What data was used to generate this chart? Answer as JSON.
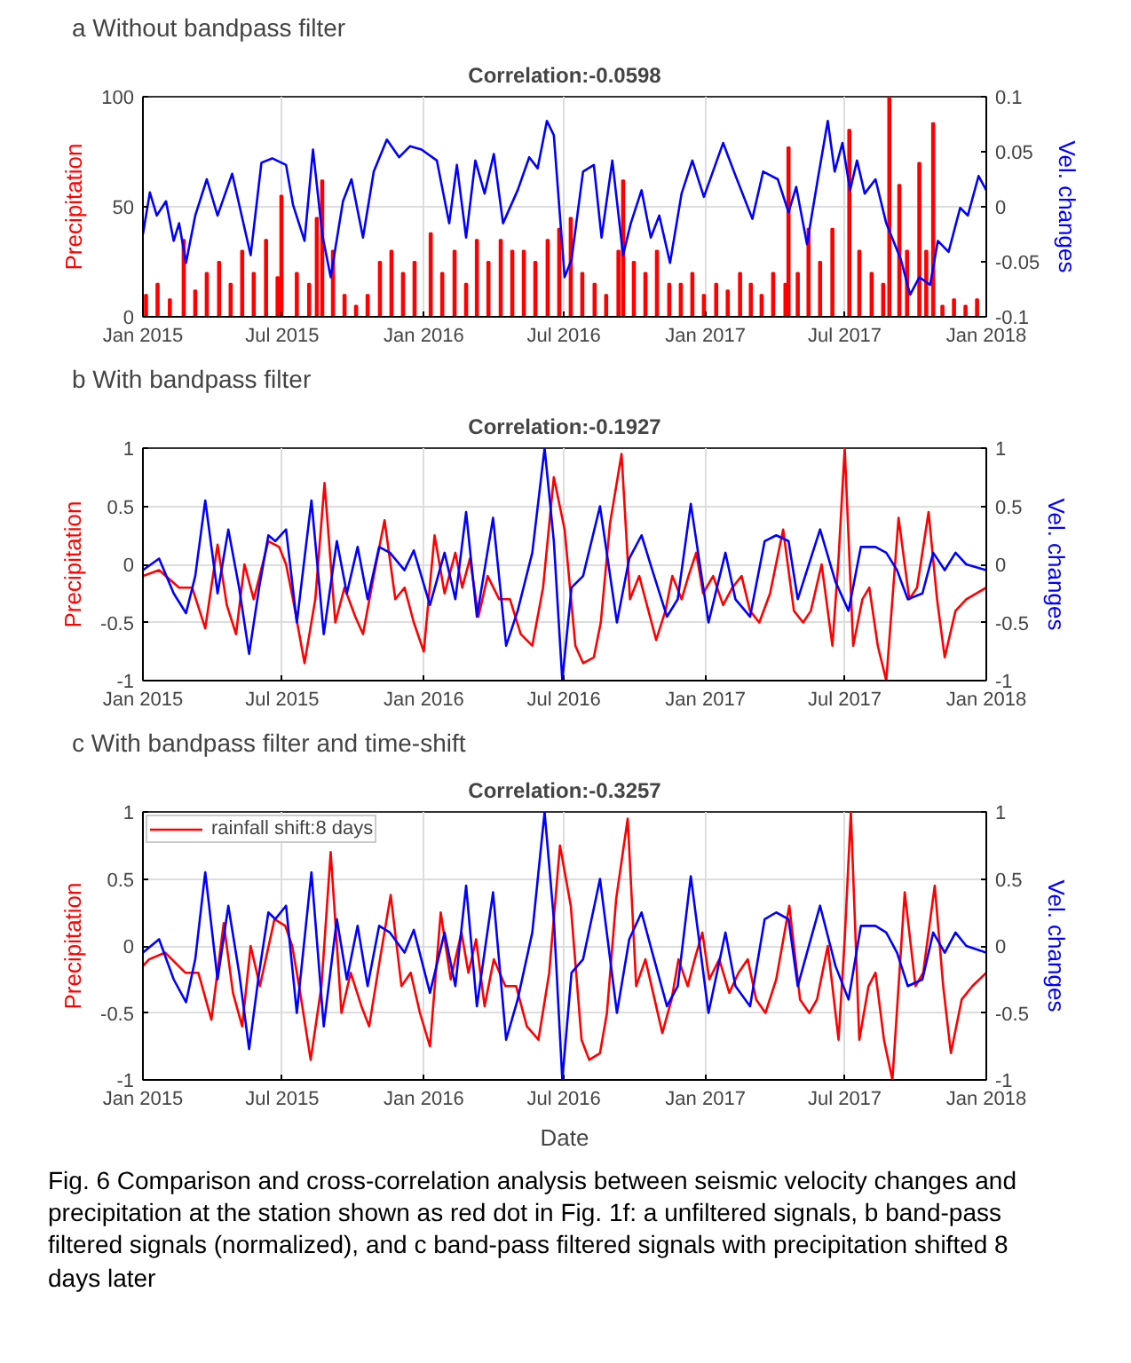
{
  "chart_data": [
    {
      "type": "line",
      "title": "a  Without bandpass filter",
      "subtitle": "Correlation:-0.0598",
      "ylabel": "Precipitation",
      "y2label": "Vel. changes",
      "xlim": [
        "2015-01-01",
        "2018-01-01"
      ],
      "xticks": [
        {
          "value": "2015-01-01",
          "label": "Jan 2015"
        },
        {
          "value": "2015-07-01",
          "label": "Jul 2015"
        },
        {
          "value": "2016-01-01",
          "label": "Jan 2016"
        },
        {
          "value": "2016-07-01",
          "label": "Jul 2016"
        },
        {
          "value": "2017-01-01",
          "label": "Jan 2017"
        },
        {
          "value": "2017-07-01",
          "label": "Jul 2017"
        },
        {
          "value": "2018-01-01",
          "label": "Jan 2018"
        }
      ],
      "ylim": [
        0,
        100
      ],
      "yticks": [
        0,
        50,
        100
      ],
      "y2lim": [
        -0.1,
        0.1
      ],
      "y2ticks": [
        -0.1,
        -0.05,
        0,
        0.05,
        0.1
      ],
      "grid": true,
      "series": [
        {
          "type": "bar",
          "color": "#ff0000",
          "x": [
            "2015-01-05",
            "2015-01-20",
            "2015-02-05",
            "2015-02-23",
            "2015-03-10",
            "2015-03-25",
            "2015-04-10",
            "2015-04-25",
            "2015-05-10",
            "2015-05-25",
            "2015-06-10",
            "2015-06-25",
            "2015-06-30",
            "2015-07-20",
            "2015-08-05",
            "2015-08-15",
            "2015-08-22",
            "2015-09-05",
            "2015-09-20",
            "2015-10-05",
            "2015-10-20",
            "2015-11-05",
            "2015-11-20",
            "2015-12-05",
            "2015-12-20",
            "2016-01-10",
            "2016-01-25",
            "2016-02-10",
            "2016-02-25",
            "2016-03-10",
            "2016-03-25",
            "2016-04-10",
            "2016-04-25",
            "2016-05-10",
            "2016-05-25",
            "2016-06-10",
            "2016-06-25",
            "2016-07-10",
            "2016-07-25",
            "2016-08-10",
            "2016-08-25",
            "2016-09-10",
            "2016-09-16",
            "2016-09-30",
            "2016-10-15",
            "2016-10-30",
            "2016-11-15",
            "2016-11-30",
            "2016-12-15",
            "2016-12-30",
            "2017-01-15",
            "2017-01-30",
            "2017-02-15",
            "2017-03-01",
            "2017-03-15",
            "2017-03-30",
            "2017-04-15",
            "2017-04-19",
            "2017-05-01",
            "2017-05-15",
            "2017-05-30",
            "2017-06-15",
            "2017-07-07",
            "2017-07-20",
            "2017-08-05",
            "2017-08-20",
            "2017-08-28",
            "2017-09-10",
            "2017-09-20",
            "2017-10-06",
            "2017-10-15",
            "2017-10-24",
            "2017-11-05",
            "2017-11-20",
            "2017-12-05",
            "2017-12-20"
          ],
          "values": [
            10,
            15,
            8,
            35,
            12,
            20,
            25,
            15,
            30,
            20,
            35,
            18,
            55,
            20,
            15,
            45,
            62,
            30,
            10,
            5,
            10,
            25,
            30,
            20,
            25,
            38,
            20,
            30,
            15,
            35,
            25,
            35,
            30,
            30,
            25,
            35,
            40,
            45,
            20,
            15,
            10,
            30,
            62,
            25,
            20,
            30,
            15,
            15,
            20,
            10,
            15,
            12,
            20,
            15,
            10,
            20,
            15,
            77,
            20,
            40,
            25,
            40,
            85,
            30,
            20,
            15,
            100,
            60,
            30,
            70,
            30,
            88,
            5,
            8,
            5,
            8
          ]
        },
        {
          "type": "line",
          "axis": "y2",
          "color": "#0000ff",
          "x": [
            "2015-01-01",
            "2015-01-10",
            "2015-01-19",
            "2015-01-31",
            "2015-02-10",
            "2015-02-17",
            "2015-02-26",
            "2015-03-10",
            "2015-03-25",
            "2015-04-08",
            "2015-04-27",
            "2015-05-21",
            "2015-06-04",
            "2015-06-18",
            "2015-07-06",
            "2015-07-15",
            "2015-07-30",
            "2015-08-10",
            "2015-08-22",
            "2015-09-02",
            "2015-09-18",
            "2015-09-29",
            "2015-10-14",
            "2015-10-28",
            "2015-11-14",
            "2015-11-30",
            "2015-12-14",
            "2015-12-29",
            "2016-01-18",
            "2016-02-03",
            "2016-02-13",
            "2016-02-25",
            "2016-03-08",
            "2016-03-20",
            "2016-04-01",
            "2016-04-13",
            "2016-05-02",
            "2016-05-17",
            "2016-05-28",
            "2016-06-09",
            "2016-06-18",
            "2016-07-02",
            "2016-07-11",
            "2016-07-26",
            "2016-08-09",
            "2016-08-19",
            "2016-09-02",
            "2016-09-16",
            "2016-09-26",
            "2016-10-10",
            "2016-10-22",
            "2016-11-02",
            "2016-11-16",
            "2016-12-01",
            "2016-12-15",
            "2016-12-30",
            "2017-01-24",
            "2017-02-07",
            "2017-03-03",
            "2017-03-17",
            "2017-04-05",
            "2017-04-19",
            "2017-04-29",
            "2017-05-13",
            "2017-05-27",
            "2017-06-09",
            "2017-06-18",
            "2017-06-28",
            "2017-07-08",
            "2017-07-17",
            "2017-07-27",
            "2017-08-10",
            "2017-08-24",
            "2017-09-12",
            "2017-09-24",
            "2017-10-06",
            "2017-10-20",
            "2017-10-30",
            "2017-11-13",
            "2017-11-28",
            "2017-12-08",
            "2017-12-22",
            "2018-01-01"
          ],
          "values": [
            -0.025,
            0.013,
            -0.008,
            0.005,
            -0.031,
            -0.015,
            -0.051,
            -0.008,
            0.025,
            -0.008,
            0.03,
            -0.044,
            0.04,
            0.044,
            0.038,
            0.002,
            -0.031,
            0.052,
            -0.025,
            -0.064,
            0.005,
            0.025,
            -0.028,
            0.032,
            0.061,
            0.045,
            0.055,
            0.052,
            0.042,
            -0.015,
            0.038,
            -0.028,
            0.042,
            0.012,
            0.048,
            -0.015,
            0.015,
            0.045,
            0.035,
            0.078,
            0.065,
            -0.064,
            -0.048,
            0.032,
            0.038,
            -0.028,
            0.042,
            -0.044,
            -0.015,
            0.015,
            -0.028,
            -0.008,
            -0.051,
            0.012,
            0.042,
            0.009,
            0.058,
            0.032,
            -0.011,
            0.032,
            0.025,
            -0.005,
            0.018,
            -0.034,
            0.025,
            0.078,
            0.032,
            0.058,
            0.015,
            0.042,
            0.012,
            0.025,
            -0.015,
            -0.048,
            -0.08,
            -0.064,
            -0.071,
            -0.031,
            -0.041,
            -0.001,
            -0.008,
            0.028,
            0.015
          ]
        }
      ]
    },
    {
      "type": "line",
      "title": "b  With bandpass filter",
      "subtitle": "Correlation:-0.1927",
      "ylabel": "Precipitation",
      "y2label": "Vel. changes",
      "xlim": [
        "2015-01-01",
        "2018-01-01"
      ],
      "xticks": [
        {
          "value": "2015-01-01",
          "label": "Jan 2015"
        },
        {
          "value": "2015-07-01",
          "label": "Jul 2015"
        },
        {
          "value": "2016-01-01",
          "label": "Jan 2016"
        },
        {
          "value": "2016-07-01",
          "label": "Jul 2016"
        },
        {
          "value": "2017-01-01",
          "label": "Jan 2017"
        },
        {
          "value": "2017-07-01",
          "label": "Jul 2017"
        },
        {
          "value": "2018-01-01",
          "label": "Jan 2018"
        }
      ],
      "ylim": [
        -1,
        1
      ],
      "yticks": [
        -1,
        -0.5,
        0,
        0.5,
        1
      ],
      "y2lim": [
        -1,
        1
      ],
      "y2ticks": [
        -1,
        -0.5,
        0,
        0.5,
        1
      ],
      "grid": true,
      "series": [
        {
          "color": "#ff0000",
          "x": [
            "2015-01-01",
            "2015-01-22",
            "2015-02-17",
            "2015-03-06",
            "2015-03-23",
            "2015-04-08",
            "2015-04-20",
            "2015-05-02",
            "2015-05-13",
            "2015-05-25",
            "2015-06-13",
            "2015-06-27",
            "2015-07-06",
            "2015-07-15",
            "2015-07-30",
            "2015-08-13",
            "2015-08-25",
            "2015-09-08",
            "2015-09-20",
            "2015-10-04",
            "2015-10-14",
            "2015-10-28",
            "2015-11-11",
            "2015-11-25",
            "2015-12-07",
            "2015-12-19",
            "2016-01-01",
            "2016-01-15",
            "2016-01-28",
            "2016-02-11",
            "2016-02-20",
            "2016-03-01",
            "2016-03-12",
            "2016-03-24",
            "2016-04-08",
            "2016-04-22",
            "2016-05-06",
            "2016-05-21",
            "2016-06-04",
            "2016-06-18",
            "2016-07-02",
            "2016-07-16",
            "2016-07-26",
            "2016-08-09",
            "2016-08-18",
            "2016-08-30",
            "2016-09-14",
            "2016-09-25",
            "2016-10-07",
            "2016-10-19",
            "2016-10-29",
            "2016-11-10",
            "2016-11-19",
            "2016-12-01",
            "2016-12-10",
            "2016-12-20",
            "2016-12-29",
            "2017-01-11",
            "2017-01-24",
            "2017-02-05",
            "2017-02-17",
            "2017-02-28",
            "2017-03-12",
            "2017-03-26",
            "2017-04-12",
            "2017-04-26",
            "2017-05-08",
            "2017-05-18",
            "2017-06-01",
            "2017-06-15",
            "2017-06-23",
            "2017-07-01",
            "2017-07-12",
            "2017-07-24",
            "2017-08-02",
            "2017-08-13",
            "2017-08-24",
            "2017-09-09",
            "2017-09-23",
            "2017-10-03",
            "2017-10-18",
            "2017-10-29",
            "2017-11-08",
            "2017-11-22",
            "2017-12-06",
            "2018-01-01"
          ],
          "values": [
            -0.1,
            -0.05,
            -0.2,
            -0.2,
            -0.55,
            0.17,
            -0.35,
            -0.6,
            0.0,
            -0.3,
            0.2,
            0.15,
            0.0,
            -0.3,
            -0.85,
            -0.3,
            0.7,
            -0.5,
            -0.2,
            -0.45,
            -0.6,
            -0.1,
            0.38,
            -0.3,
            -0.2,
            -0.5,
            -0.75,
            0.25,
            -0.25,
            0.1,
            -0.2,
            0.05,
            -0.45,
            -0.1,
            -0.3,
            -0.3,
            -0.6,
            -0.7,
            -0.2,
            0.75,
            0.3,
            -0.7,
            -0.85,
            -0.8,
            -0.5,
            0.35,
            0.95,
            -0.3,
            -0.1,
            -0.4,
            -0.65,
            -0.4,
            -0.1,
            -0.3,
            -0.1,
            0.1,
            -0.25,
            -0.1,
            -0.35,
            -0.2,
            -0.1,
            -0.4,
            -0.5,
            -0.25,
            0.3,
            -0.4,
            -0.5,
            -0.4,
            0.0,
            -0.7,
            0.05,
            1.0,
            -0.7,
            -0.3,
            -0.2,
            -0.7,
            -1.0,
            0.4,
            -0.3,
            -0.2,
            0.45,
            -0.3,
            -0.8,
            -0.4,
            -0.3,
            -0.2
          ]
        },
        {
          "axis": "y2",
          "color": "#0000ff",
          "x": [
            "2015-01-01",
            "2015-01-22",
            "2015-02-10",
            "2015-02-26",
            "2015-03-10",
            "2015-03-23",
            "2015-04-08",
            "2015-04-22",
            "2015-05-06",
            "2015-05-19",
            "2015-06-01",
            "2015-06-13",
            "2015-06-22",
            "2015-07-06",
            "2015-07-20",
            "2015-08-08",
            "2015-08-24",
            "2015-09-10",
            "2015-09-23",
            "2015-10-07",
            "2015-10-20",
            "2015-11-04",
            "2015-11-18",
            "2015-12-07",
            "2015-12-19",
            "2016-01-09",
            "2016-01-28",
            "2016-02-11",
            "2016-02-25",
            "2016-03-10",
            "2016-03-31",
            "2016-04-17",
            "2016-05-02",
            "2016-05-21",
            "2016-06-06",
            "2016-06-18",
            "2016-06-29",
            "2016-07-11",
            "2016-07-26",
            "2016-08-17",
            "2016-09-08",
            "2016-09-24",
            "2016-10-10",
            "2016-10-24",
            "2016-11-12",
            "2016-11-26",
            "2016-12-13",
            "2017-01-05",
            "2017-01-27",
            "2017-02-09",
            "2017-02-28",
            "2017-03-19",
            "2017-04-03",
            "2017-04-19",
            "2017-05-01",
            "2017-05-13",
            "2017-05-30",
            "2017-06-19",
            "2017-07-06",
            "2017-07-22",
            "2017-08-10",
            "2017-08-24",
            "2017-09-07",
            "2017-09-21",
            "2017-10-10",
            "2017-10-24",
            "2017-11-08",
            "2017-11-22",
            "2017-12-06",
            "2018-01-01"
          ],
          "values": [
            -0.05,
            0.05,
            -0.25,
            -0.42,
            -0.1,
            0.55,
            -0.25,
            0.3,
            -0.2,
            -0.77,
            -0.2,
            0.25,
            0.2,
            0.3,
            -0.5,
            0.55,
            -0.6,
            0.2,
            -0.25,
            0.15,
            -0.3,
            0.15,
            0.1,
            -0.05,
            0.12,
            -0.35,
            0.1,
            -0.3,
            0.45,
            -0.45,
            0.4,
            -0.7,
            -0.4,
            0.1,
            1.0,
            0.2,
            -1.0,
            -0.2,
            -0.1,
            0.5,
            -0.5,
            0.05,
            0.25,
            -0.05,
            -0.45,
            -0.3,
            0.52,
            -0.5,
            0.1,
            -0.3,
            -0.45,
            0.2,
            0.25,
            0.2,
            -0.3,
            -0.05,
            0.3,
            -0.15,
            -0.4,
            0.15,
            0.15,
            0.1,
            -0.05,
            -0.3,
            -0.25,
            0.1,
            -0.05,
            0.1,
            0.0,
            -0.05
          ]
        }
      ]
    },
    {
      "type": "line",
      "title": "c  With bandpass filter and time-shift",
      "subtitle": "Correlation:-0.3257",
      "xlabel": "Date",
      "ylabel": "Precipitation",
      "y2label": "Vel. changes",
      "xlim": [
        "2015-01-01",
        "2018-01-01"
      ],
      "xticks": [
        {
          "value": "2015-01-01",
          "label": "Jan 2015"
        },
        {
          "value": "2015-07-01",
          "label": "Jul 2015"
        },
        {
          "value": "2016-01-01",
          "label": "Jan 2016"
        },
        {
          "value": "2016-07-01",
          "label": "Jul 2016"
        },
        {
          "value": "2017-01-01",
          "label": "Jan 2017"
        },
        {
          "value": "2017-07-01",
          "label": "Jul 2017"
        },
        {
          "value": "2018-01-01",
          "label": "Jan 2018"
        }
      ],
      "ylim": [
        -1,
        1
      ],
      "yticks": [
        -1,
        -0.5,
        0,
        0.5,
        1
      ],
      "y2lim": [
        -1,
        1
      ],
      "y2ticks": [
        -1,
        -0.5,
        0,
        0.5,
        1
      ],
      "grid": true,
      "legend": "top left",
      "annotations": [
        "Fig. 6 Comparison and cross-correlation analysis between seismic velocity changes and precipitation at the station shown as red dot in Fig. 1f: a unfiltered signals, b band-pass filtered signals (normalized), and c band-pass filtered signals with precipitation shifted 8 days later"
      ],
      "series": [
        {
          "name": "rainfall shift:8 days",
          "color": "#ff0000",
          "x": [
            "2015-01-01",
            "2015-01-09",
            "2015-01-30",
            "2015-02-25",
            "2015-03-14",
            "2015-03-31",
            "2015-04-16",
            "2015-04-28",
            "2015-05-10",
            "2015-05-21",
            "2015-06-02",
            "2015-06-21",
            "2015-07-05",
            "2015-07-14",
            "2015-07-23",
            "2015-08-07",
            "2015-08-21",
            "2015-09-02",
            "2015-09-16",
            "2015-09-28",
            "2015-10-12",
            "2015-10-22",
            "2015-11-05",
            "2015-11-19",
            "2015-12-03",
            "2015-12-15",
            "2015-12-27",
            "2016-01-09",
            "2016-01-23",
            "2016-02-05",
            "2016-02-19",
            "2016-02-28",
            "2016-03-09",
            "2016-03-20",
            "2016-04-01",
            "2016-04-16",
            "2016-04-30",
            "2016-05-14",
            "2016-05-29",
            "2016-06-12",
            "2016-06-26",
            "2016-07-10",
            "2016-07-24",
            "2016-08-03",
            "2016-08-17",
            "2016-08-26",
            "2016-09-07",
            "2016-09-22",
            "2016-10-03",
            "2016-10-15",
            "2016-10-27",
            "2016-11-06",
            "2016-11-18",
            "2016-11-27",
            "2016-12-09",
            "2016-12-18",
            "2016-12-28",
            "2017-01-06",
            "2017-01-19",
            "2017-02-01",
            "2017-02-13",
            "2017-02-25",
            "2017-03-08",
            "2017-03-20",
            "2017-04-03",
            "2017-04-20",
            "2017-05-04",
            "2017-05-16",
            "2017-05-26",
            "2017-06-09",
            "2017-06-23",
            "2017-07-01",
            "2017-07-09",
            "2017-07-20",
            "2017-08-01",
            "2017-08-10",
            "2017-08-21",
            "2017-09-01",
            "2017-09-17",
            "2017-10-01",
            "2017-10-11",
            "2017-10-26",
            "2017-11-06",
            "2017-11-16",
            "2017-11-30",
            "2017-12-14",
            "2018-01-01"
          ],
          "values": [
            -0.15,
            -0.1,
            -0.05,
            -0.2,
            -0.2,
            -0.55,
            0.17,
            -0.35,
            -0.6,
            0.0,
            -0.3,
            0.2,
            0.15,
            0.0,
            -0.3,
            -0.85,
            -0.3,
            0.7,
            -0.5,
            -0.2,
            -0.45,
            -0.6,
            -0.1,
            0.38,
            -0.3,
            -0.2,
            -0.5,
            -0.75,
            0.25,
            -0.25,
            0.1,
            -0.2,
            0.05,
            -0.45,
            -0.1,
            -0.3,
            -0.3,
            -0.6,
            -0.7,
            -0.2,
            0.75,
            0.3,
            -0.7,
            -0.85,
            -0.8,
            -0.5,
            0.35,
            0.95,
            -0.3,
            -0.1,
            -0.4,
            -0.65,
            -0.4,
            -0.1,
            -0.3,
            -0.1,
            0.1,
            -0.25,
            -0.1,
            -0.35,
            -0.2,
            -0.1,
            -0.4,
            -0.5,
            -0.25,
            0.3,
            -0.4,
            -0.5,
            -0.4,
            0.0,
            -0.7,
            0.05,
            1.0,
            -0.7,
            -0.3,
            -0.2,
            -0.7,
            -1.0,
            0.4,
            -0.3,
            -0.2,
            0.45,
            -0.3,
            -0.8,
            -0.4,
            -0.3,
            -0.2
          ]
        },
        {
          "axis": "y2",
          "color": "#0000ff",
          "x": [
            "2015-01-01",
            "2015-01-22",
            "2015-02-10",
            "2015-02-26",
            "2015-03-10",
            "2015-03-23",
            "2015-04-08",
            "2015-04-22",
            "2015-05-06",
            "2015-05-19",
            "2015-06-01",
            "2015-06-13",
            "2015-06-22",
            "2015-07-06",
            "2015-07-20",
            "2015-08-08",
            "2015-08-24",
            "2015-09-10",
            "2015-09-23",
            "2015-10-07",
            "2015-10-20",
            "2015-11-04",
            "2015-11-18",
            "2015-12-07",
            "2015-12-19",
            "2016-01-09",
            "2016-01-28",
            "2016-02-11",
            "2016-02-25",
            "2016-03-10",
            "2016-03-31",
            "2016-04-17",
            "2016-05-02",
            "2016-05-21",
            "2016-06-06",
            "2016-06-18",
            "2016-06-29",
            "2016-07-11",
            "2016-07-26",
            "2016-08-17",
            "2016-09-08",
            "2016-09-24",
            "2016-10-10",
            "2016-10-24",
            "2016-11-12",
            "2016-11-26",
            "2016-12-13",
            "2017-01-05",
            "2017-01-27",
            "2017-02-09",
            "2017-02-28",
            "2017-03-19",
            "2017-04-03",
            "2017-04-19",
            "2017-05-01",
            "2017-05-13",
            "2017-05-30",
            "2017-06-19",
            "2017-07-06",
            "2017-07-22",
            "2017-08-10",
            "2017-08-24",
            "2017-09-07",
            "2017-09-21",
            "2017-10-10",
            "2017-10-24",
            "2017-11-08",
            "2017-11-22",
            "2017-12-06",
            "2018-01-01"
          ],
          "values": [
            -0.05,
            0.05,
            -0.25,
            -0.42,
            -0.1,
            0.55,
            -0.25,
            0.3,
            -0.2,
            -0.77,
            -0.2,
            0.25,
            0.2,
            0.3,
            -0.5,
            0.55,
            -0.6,
            0.2,
            -0.25,
            0.15,
            -0.3,
            0.15,
            0.1,
            -0.05,
            0.12,
            -0.35,
            0.1,
            -0.3,
            0.45,
            -0.45,
            0.4,
            -0.7,
            -0.4,
            0.1,
            1.0,
            0.2,
            -1.0,
            -0.2,
            -0.1,
            0.5,
            -0.5,
            0.05,
            0.25,
            -0.05,
            -0.45,
            -0.3,
            0.52,
            -0.5,
            0.1,
            -0.3,
            -0.45,
            0.2,
            0.25,
            0.2,
            -0.3,
            -0.05,
            0.3,
            -0.15,
            -0.4,
            0.15,
            0.15,
            0.1,
            -0.05,
            -0.3,
            -0.25,
            0.1,
            -0.05,
            0.1,
            0.0,
            -0.05
          ]
        }
      ]
    }
  ]
}
